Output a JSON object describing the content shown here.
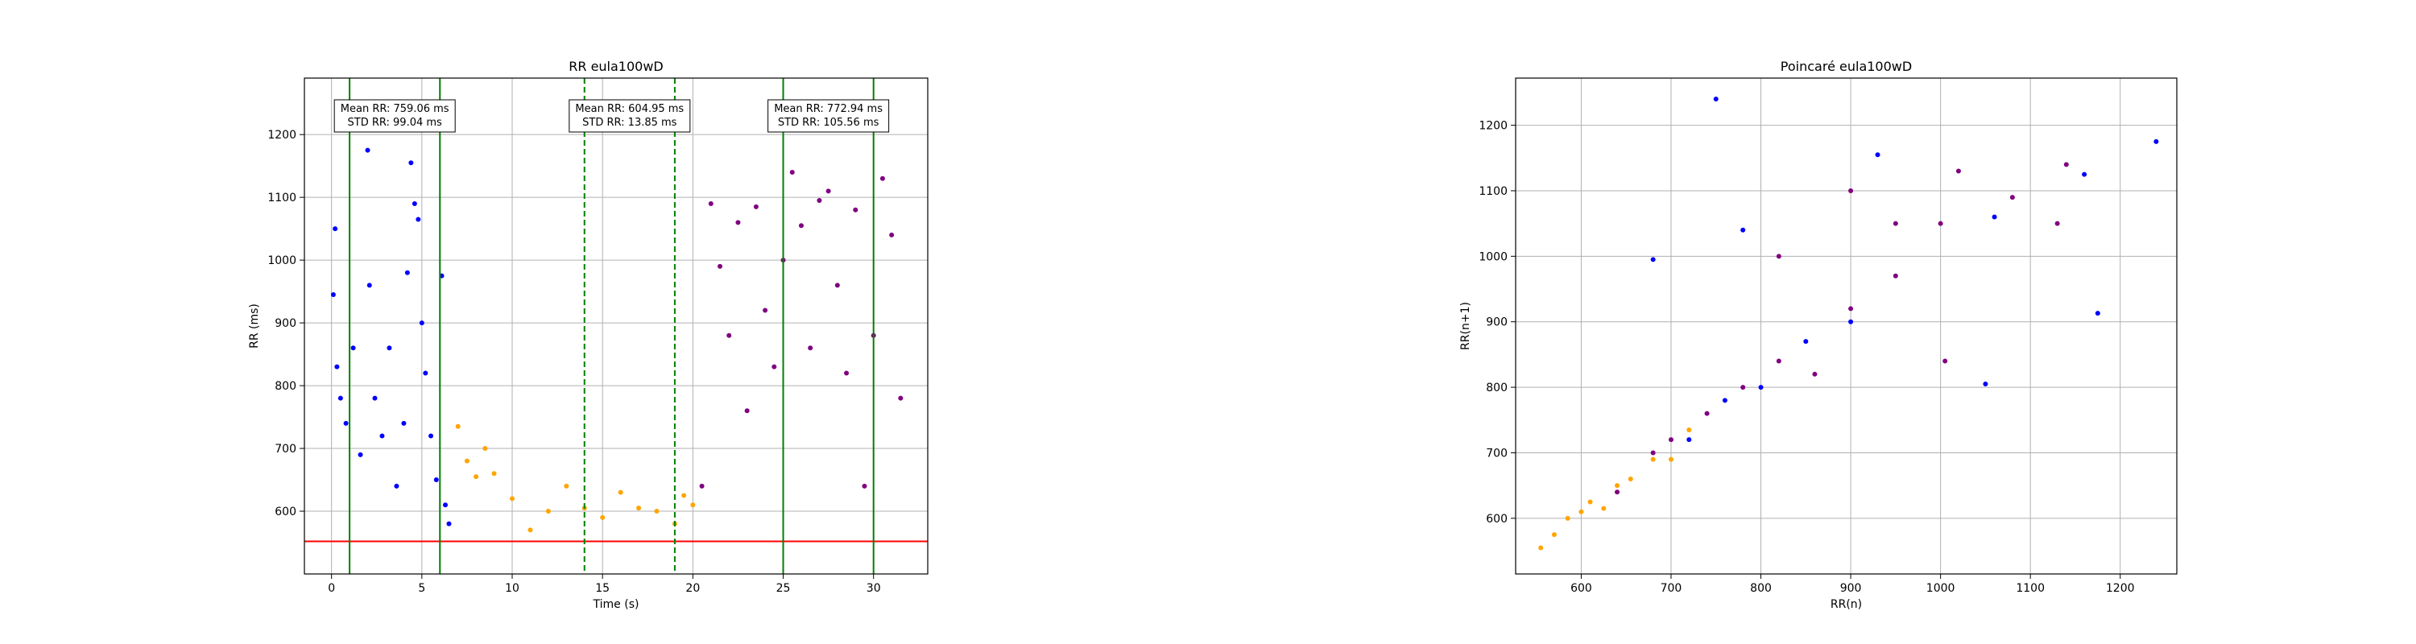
{
  "chart_data": [
    {
      "type": "scatter",
      "title": "RR eula100wD",
      "xlabel": "Time (s)",
      "ylabel": "RR (ms)",
      "xlim": [
        -1.5,
        33
      ],
      "ylim": [
        500,
        1290
      ],
      "x_ticks": [
        0,
        5,
        10,
        15,
        20,
        25,
        30
      ],
      "y_ticks": [
        600,
        700,
        800,
        900,
        1000,
        1100,
        1200
      ],
      "grid": true,
      "series_colors": {
        "segment1": "#0000ff",
        "segment2": "#ffa500",
        "segment3": "#800080"
      },
      "series": [
        {
          "points": [
            [
              0.1,
              945
            ],
            [
              0.2,
              1050
            ],
            [
              0.3,
              830
            ],
            [
              0.5,
              780
            ],
            [
              0.8,
              740
            ],
            [
              1.2,
              860
            ],
            [
              1.6,
              690
            ],
            [
              2.0,
              1175
            ],
            [
              2.1,
              960
            ],
            [
              2.4,
              780
            ],
            [
              2.8,
              720
            ],
            [
              3.2,
              860
            ],
            [
              3.6,
              640
            ],
            [
              4.0,
              740
            ],
            [
              4.2,
              980
            ],
            [
              4.4,
              1155
            ],
            [
              4.6,
              1090
            ],
            [
              4.8,
              1065
            ],
            [
              5.0,
              900
            ],
            [
              5.2,
              820
            ],
            [
              5.5,
              720
            ],
            [
              5.8,
              650
            ],
            [
              6.1,
              975
            ],
            [
              6.3,
              610
            ],
            [
              6.5,
              580
            ]
          ]
        },
        {
          "points": [
            [
              7.0,
              735
            ],
            [
              7.5,
              680
            ],
            [
              8.0,
              655
            ],
            [
              8.5,
              700
            ],
            [
              9.0,
              660
            ],
            [
              10.0,
              620
            ],
            [
              11.0,
              570
            ],
            [
              12.0,
              600
            ],
            [
              13.0,
              640
            ],
            [
              14.0,
              605
            ],
            [
              15.0,
              590
            ],
            [
              16.0,
              630
            ],
            [
              17.0,
              605
            ],
            [
              18.0,
              600
            ],
            [
              19.0,
              580
            ],
            [
              19.5,
              625
            ],
            [
              20.0,
              610
            ]
          ]
        },
        {
          "points": [
            [
              20.5,
              640
            ],
            [
              21.0,
              1090
            ],
            [
              21.5,
              990
            ],
            [
              22.0,
              880
            ],
            [
              22.5,
              1060
            ],
            [
              23.0,
              760
            ],
            [
              23.5,
              1085
            ],
            [
              24.0,
              920
            ],
            [
              24.5,
              830
            ],
            [
              25.0,
              1000
            ],
            [
              25.5,
              1140
            ],
            [
              26.0,
              1055
            ],
            [
              26.5,
              860
            ],
            [
              27.0,
              1095
            ],
            [
              27.5,
              1110
            ],
            [
              28.0,
              960
            ],
            [
              28.5,
              820
            ],
            [
              29.0,
              1080
            ],
            [
              29.5,
              640
            ],
            [
              30.0,
              880
            ],
            [
              30.5,
              1130
            ],
            [
              31.0,
              1040
            ],
            [
              31.5,
              780
            ]
          ]
        }
      ],
      "hlines": [
        {
          "y": 552,
          "color": "#ff0000"
        }
      ],
      "vlines": [
        {
          "x": 1.0,
          "color": "#008000",
          "style": "solid"
        },
        {
          "x": 6.0,
          "color": "#008000",
          "style": "solid"
        },
        {
          "x": 14.0,
          "color": "#008000",
          "style": "dashed"
        },
        {
          "x": 19.0,
          "color": "#008000",
          "style": "dashed"
        },
        {
          "x": 25.0,
          "color": "#008000",
          "style": "solid"
        },
        {
          "x": 30.0,
          "color": "#008000",
          "style": "solid"
        }
      ],
      "annotations": [
        {
          "x_center": 3.5,
          "y": 1240,
          "lines": [
            "Mean RR: 759.06 ms",
            "STD RR: 99.04 ms"
          ]
        },
        {
          "x_center": 16.5,
          "y": 1240,
          "lines": [
            "Mean RR: 604.95 ms",
            "STD RR: 13.85 ms"
          ]
        },
        {
          "x_center": 27.5,
          "y": 1240,
          "lines": [
            "Mean RR: 772.94 ms",
            "STD RR: 105.56 ms"
          ]
        }
      ]
    },
    {
      "type": "scatter",
      "title": "Poincaré eula100wD",
      "xlabel": "RR(n)",
      "ylabel": "RR(n+1)",
      "xlim": [
        527,
        1263
      ],
      "ylim": [
        515,
        1272
      ],
      "x_ticks": [
        600,
        700,
        800,
        900,
        1000,
        1100,
        1200
      ],
      "y_ticks": [
        600,
        700,
        800,
        900,
        1000,
        1100,
        1200
      ],
      "grid": true,
      "series_colors": {
        "segment1": "#0000ff",
        "segment2": "#ffa500",
        "segment3": "#800080"
      },
      "series": [
        {
          "points": [
            [
              750,
              1240
            ],
            [
              1240,
              1175
            ],
            [
              1160,
              1125
            ],
            [
              1175,
              913
            ],
            [
              1050,
              805
            ],
            [
              680,
              995
            ],
            [
              930,
              1155
            ],
            [
              1060,
              1060
            ],
            [
              780,
              1040
            ],
            [
              760,
              780
            ],
            [
              800,
              800
            ],
            [
              720,
              720
            ],
            [
              850,
              870
            ],
            [
              900,
              900
            ]
          ]
        },
        {
          "points": [
            [
              555,
              555
            ],
            [
              570,
              575
            ],
            [
              585,
              600
            ],
            [
              600,
              610
            ],
            [
              610,
              625
            ],
            [
              625,
              615
            ],
            [
              640,
              650
            ],
            [
              655,
              660
            ],
            [
              680,
              690
            ],
            [
              700,
              690
            ],
            [
              720,
              735
            ]
          ]
        },
        {
          "points": [
            [
              640,
              640
            ],
            [
              680,
              700
            ],
            [
              700,
              720
            ],
            [
              740,
              760
            ],
            [
              780,
              800
            ],
            [
              820,
              840
            ],
            [
              860,
              820
            ],
            [
              900,
              920
            ],
            [
              950,
              970
            ],
            [
              1000,
              1050
            ],
            [
              1020,
              1130
            ],
            [
              1080,
              1090
            ],
            [
              1140,
              1140
            ],
            [
              1130,
              1050
            ],
            [
              900,
              1100
            ],
            [
              820,
              1000
            ],
            [
              1005,
              840
            ],
            [
              950,
              1050
            ]
          ]
        }
      ]
    }
  ]
}
